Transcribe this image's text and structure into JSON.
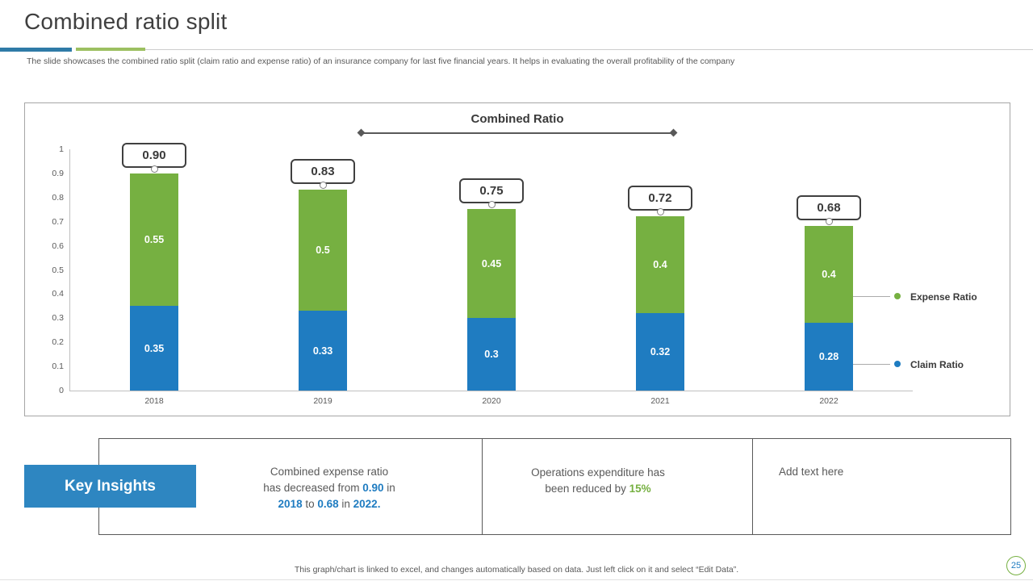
{
  "header": {
    "title": "Combined ratio split",
    "subtitle": "The slide showcases the combined ratio split (claim ratio and expense ratio) of an insurance company for last five financial years. It helps in evaluating the overall profitability of the company"
  },
  "chart_data": {
    "type": "bar",
    "stacked": true,
    "title": "Combined Ratio",
    "categories": [
      "2018",
      "2019",
      "2020",
      "2021",
      "2022"
    ],
    "series": [
      {
        "name": "Claim Ratio",
        "color": "#1F7CC1",
        "values": [
          0.35,
          0.33,
          0.3,
          0.32,
          0.28
        ],
        "labels": [
          "0.35",
          "0.33",
          "0.3",
          "0.32",
          "0.28"
        ]
      },
      {
        "name": "Expense Ratio",
        "color": "#76B041",
        "values": [
          0.55,
          0.5,
          0.45,
          0.4,
          0.4
        ],
        "labels": [
          "0.55",
          "0.5",
          "0.45",
          "0.4",
          "0.4"
        ]
      }
    ],
    "totals": [
      "0.90",
      "0.83",
      "0.75",
      "0.72",
      "0.68"
    ],
    "ylim": [
      0,
      1
    ],
    "yticks": [
      "0",
      "0.1",
      "0.2",
      "0.3",
      "0.4",
      "0.5",
      "0.6",
      "0.7",
      "0.8",
      "0.9",
      "1"
    ],
    "grid": false,
    "legend_position": "right",
    "legend": [
      {
        "label": "Expense Ratio",
        "color": "#76B041"
      },
      {
        "label": "Claim Ratio",
        "color": "#1F7CC1"
      }
    ]
  },
  "insights": {
    "button_label": "Key Insights",
    "item1": {
      "line1": "Combined expense ratio",
      "line2_pre": "has decreased from ",
      "line2_val": "0.90",
      "line2_post": " in",
      "line3_v1": "2018",
      "line3_mid1": " to ",
      "line3_v2": "0.68",
      "line3_mid2": " in ",
      "line3_v3": "2022."
    },
    "item2": {
      "line1": "Operations expenditure has",
      "line2_pre": "been reduced by ",
      "line2_val": "15%"
    },
    "item3": {
      "text": "Add text here"
    }
  },
  "footer": {
    "note": "This graph/chart is linked to excel, and changes automatically based on data. Just left click on it and select “Edit Data”.",
    "page_number": "25"
  },
  "colors": {
    "claim_blue": "#1F7CC1",
    "expense_green": "#76B041",
    "button_blue": "#2E86C1"
  }
}
